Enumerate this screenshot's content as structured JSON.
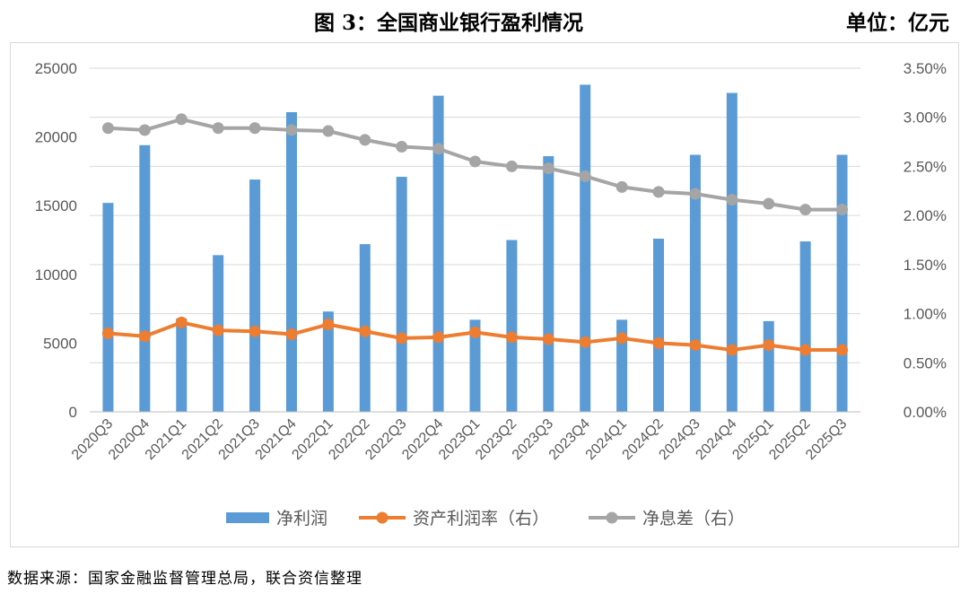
{
  "header": {
    "title": "图 3：全国商业银行盈利情况",
    "unit": "单位：亿元"
  },
  "footer": {
    "source": "数据来源：国家金融监督管理总局，联合资信整理"
  },
  "colors": {
    "bar": "#5b9bd5",
    "roa": "#ed7d31",
    "nim": "#a5a5a5",
    "grid": "#d9d9d9",
    "axis_text": "#595959"
  },
  "chart_data": {
    "type": "bar",
    "categories": [
      "2020Q3",
      "2020Q4",
      "2021Q1",
      "2021Q2",
      "2021Q3",
      "2021Q4",
      "2022Q1",
      "2022Q2",
      "2022Q3",
      "2022Q4",
      "2023Q1",
      "2023Q2",
      "2023Q3",
      "2023Q4",
      "2024Q1",
      "2024Q2",
      "2024Q3",
      "2024Q4",
      "2025Q1",
      "2025Q2",
      "2025Q3"
    ],
    "series": [
      {
        "name": "净利润",
        "type": "bar",
        "axis": "left",
        "values": [
          15200,
          19400,
          6800,
          11400,
          16900,
          21800,
          7300,
          12200,
          17100,
          23000,
          6700,
          12500,
          18600,
          23800,
          6700,
          12600,
          18700,
          23200,
          6600,
          12400,
          18700
        ]
      },
      {
        "name": "资产利润率（右）",
        "type": "line",
        "axis": "right",
        "values": [
          0.008,
          0.0077,
          0.0091,
          0.0083,
          0.0082,
          0.0079,
          0.0089,
          0.0082,
          0.0075,
          0.0076,
          0.0081,
          0.0076,
          0.0074,
          0.0071,
          0.0075,
          0.007,
          0.0068,
          0.0063,
          0.0068,
          0.0063,
          0.0063
        ]
      },
      {
        "name": "净息差（右）",
        "type": "line",
        "axis": "right",
        "values": [
          0.0289,
          0.0287,
          0.0298,
          0.0289,
          0.0289,
          0.0287,
          0.0286,
          0.0277,
          0.027,
          0.0268,
          0.0255,
          0.025,
          0.0248,
          0.024,
          0.0229,
          0.0224,
          0.0222,
          0.0216,
          0.0212,
          0.0206,
          0.0206
        ]
      }
    ],
    "yleft": {
      "min": 0,
      "max": 25000,
      "ticks": [
        "0",
        "5000",
        "10000",
        "15000",
        "20000",
        "25000"
      ]
    },
    "yright": {
      "min": 0,
      "max": 0.035,
      "ticks": [
        "0.00%",
        "0.50%",
        "1.00%",
        "1.50%",
        "2.00%",
        "2.50%",
        "3.00%",
        "3.50%"
      ]
    },
    "grid": true,
    "legend": "bottom"
  }
}
